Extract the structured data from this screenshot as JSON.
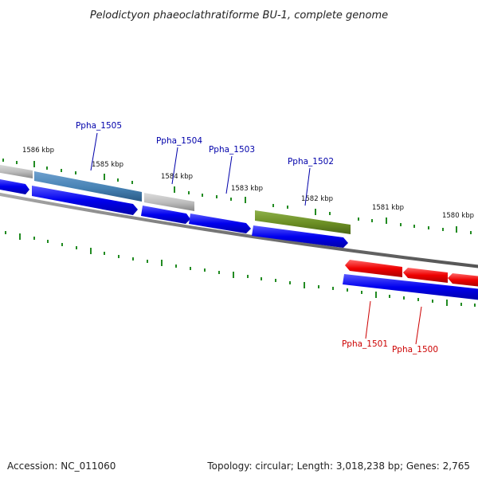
{
  "title": "Pelodictyon phaeoclathratiforme BU-1, complete genome",
  "footer": {
    "accession": "Accession: NC_011060",
    "summary": "Topology: circular; Length: 3,018,238 bp; Genes: 2,765"
  },
  "kbp_labels": [
    "1586 kbp",
    "1585 kbp",
    "1584 kbp",
    "1583 kbp",
    "1582 kbp",
    "1581 kbp",
    "1580 kbp"
  ],
  "gene_labels": [
    {
      "id": "Ppha_1505",
      "color": "#0000aa"
    },
    {
      "id": "Ppha_1504",
      "color": "#0000aa"
    },
    {
      "id": "Ppha_1503",
      "color": "#0000aa"
    },
    {
      "id": "Ppha_1502",
      "color": "#0000aa"
    },
    {
      "id": "Ppha_1501",
      "color": "#cc0000"
    },
    {
      "id": "Ppha_1500",
      "color": "#cc0000"
    }
  ],
  "colors": {
    "cds": "#0000ee",
    "reverse": "#ee0000",
    "grey_feature": "#bbbbbb",
    "steelblue_feature": "#4682b4",
    "olive_feature": "#6b8e23",
    "tick": "#228b22",
    "backbone": "#777777"
  }
}
